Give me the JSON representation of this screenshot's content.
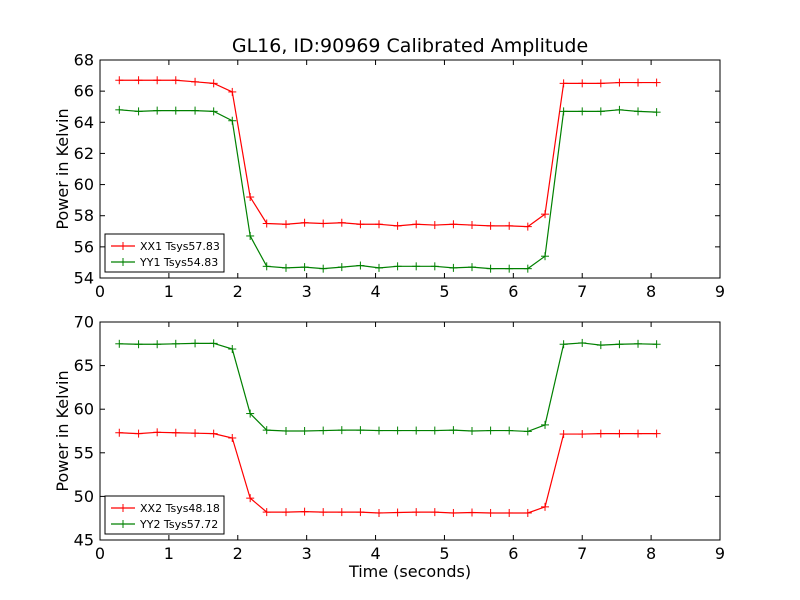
{
  "chart_data": [
    {
      "type": "line",
      "title": "GL16, ID:90969 Calibrated Amplitude",
      "xlabel": "",
      "ylabel": "Power in Kelvin",
      "xlim": [
        0,
        9
      ],
      "ylim": [
        54,
        68
      ],
      "xticks": [
        "0",
        "1",
        "2",
        "3",
        "4",
        "5",
        "6",
        "7",
        "8",
        "9"
      ],
      "yticks": [
        "54",
        "56",
        "58",
        "60",
        "62",
        "64",
        "66",
        "68"
      ],
      "legend_position": "lower-left",
      "grid": false,
      "x": [
        0.28,
        0.56,
        0.83,
        1.1,
        1.38,
        1.65,
        1.92,
        2.18,
        2.42,
        2.7,
        2.97,
        3.24,
        3.51,
        3.78,
        4.05,
        4.32,
        4.59,
        4.86,
        5.13,
        5.4,
        5.67,
        5.94,
        6.21,
        6.46,
        6.73,
        7.0,
        7.27,
        7.54,
        7.81,
        8.08
      ],
      "series": [
        {
          "name": "XX1 Tsys57.83",
          "color": "#ff0000",
          "values": [
            66.7,
            66.7,
            66.7,
            66.7,
            66.6,
            66.5,
            65.95,
            59.2,
            57.5,
            57.45,
            57.55,
            57.5,
            57.55,
            57.45,
            57.45,
            57.35,
            57.45,
            57.4,
            57.45,
            57.4,
            57.35,
            57.35,
            57.3,
            58.1,
            66.5,
            66.5,
            66.5,
            66.55,
            66.55,
            66.55
          ]
        },
        {
          "name": "YY1 Tsys54.83",
          "color": "#008000",
          "values": [
            64.8,
            64.7,
            64.75,
            64.75,
            64.75,
            64.7,
            64.1,
            56.7,
            54.75,
            54.65,
            54.7,
            54.6,
            54.7,
            54.8,
            54.65,
            54.75,
            54.75,
            54.75,
            54.65,
            54.7,
            54.6,
            54.6,
            54.6,
            55.4,
            64.7,
            64.7,
            64.7,
            64.8,
            64.7,
            64.65
          ]
        }
      ]
    },
    {
      "type": "line",
      "title": "",
      "xlabel": "Time (seconds)",
      "ylabel": "Power in Kelvin",
      "xlim": [
        0,
        9
      ],
      "ylim": [
        45,
        70
      ],
      "xticks": [
        "0",
        "1",
        "2",
        "3",
        "4",
        "5",
        "6",
        "7",
        "8",
        "9"
      ],
      "yticks": [
        "45",
        "50",
        "55",
        "60",
        "65",
        "70"
      ],
      "legend_position": "lower-left",
      "grid": false,
      "x": [
        0.28,
        0.56,
        0.83,
        1.1,
        1.38,
        1.65,
        1.92,
        2.18,
        2.42,
        2.7,
        2.97,
        3.24,
        3.51,
        3.78,
        4.05,
        4.32,
        4.59,
        4.86,
        5.13,
        5.4,
        5.67,
        5.94,
        6.21,
        6.46,
        6.73,
        7.0,
        7.27,
        7.54,
        7.81,
        8.08
      ],
      "series": [
        {
          "name": "XX2 Tsys48.18",
          "color": "#ff0000",
          "values": [
            57.3,
            57.2,
            57.35,
            57.3,
            57.25,
            57.2,
            56.7,
            49.8,
            48.2,
            48.2,
            48.25,
            48.2,
            48.2,
            48.2,
            48.1,
            48.15,
            48.2,
            48.2,
            48.1,
            48.15,
            48.1,
            48.1,
            48.1,
            48.8,
            57.15,
            57.15,
            57.2,
            57.2,
            57.2,
            57.2
          ]
        },
        {
          "name": "YY2 Tsys57.72",
          "color": "#008000",
          "values": [
            67.5,
            67.45,
            67.45,
            67.5,
            67.55,
            67.55,
            66.9,
            59.5,
            57.6,
            57.5,
            57.5,
            57.55,
            57.6,
            57.6,
            57.55,
            57.55,
            57.55,
            57.55,
            57.6,
            57.5,
            57.55,
            57.55,
            57.45,
            58.2,
            67.45,
            67.6,
            67.35,
            67.45,
            67.5,
            67.45
          ]
        }
      ]
    }
  ]
}
